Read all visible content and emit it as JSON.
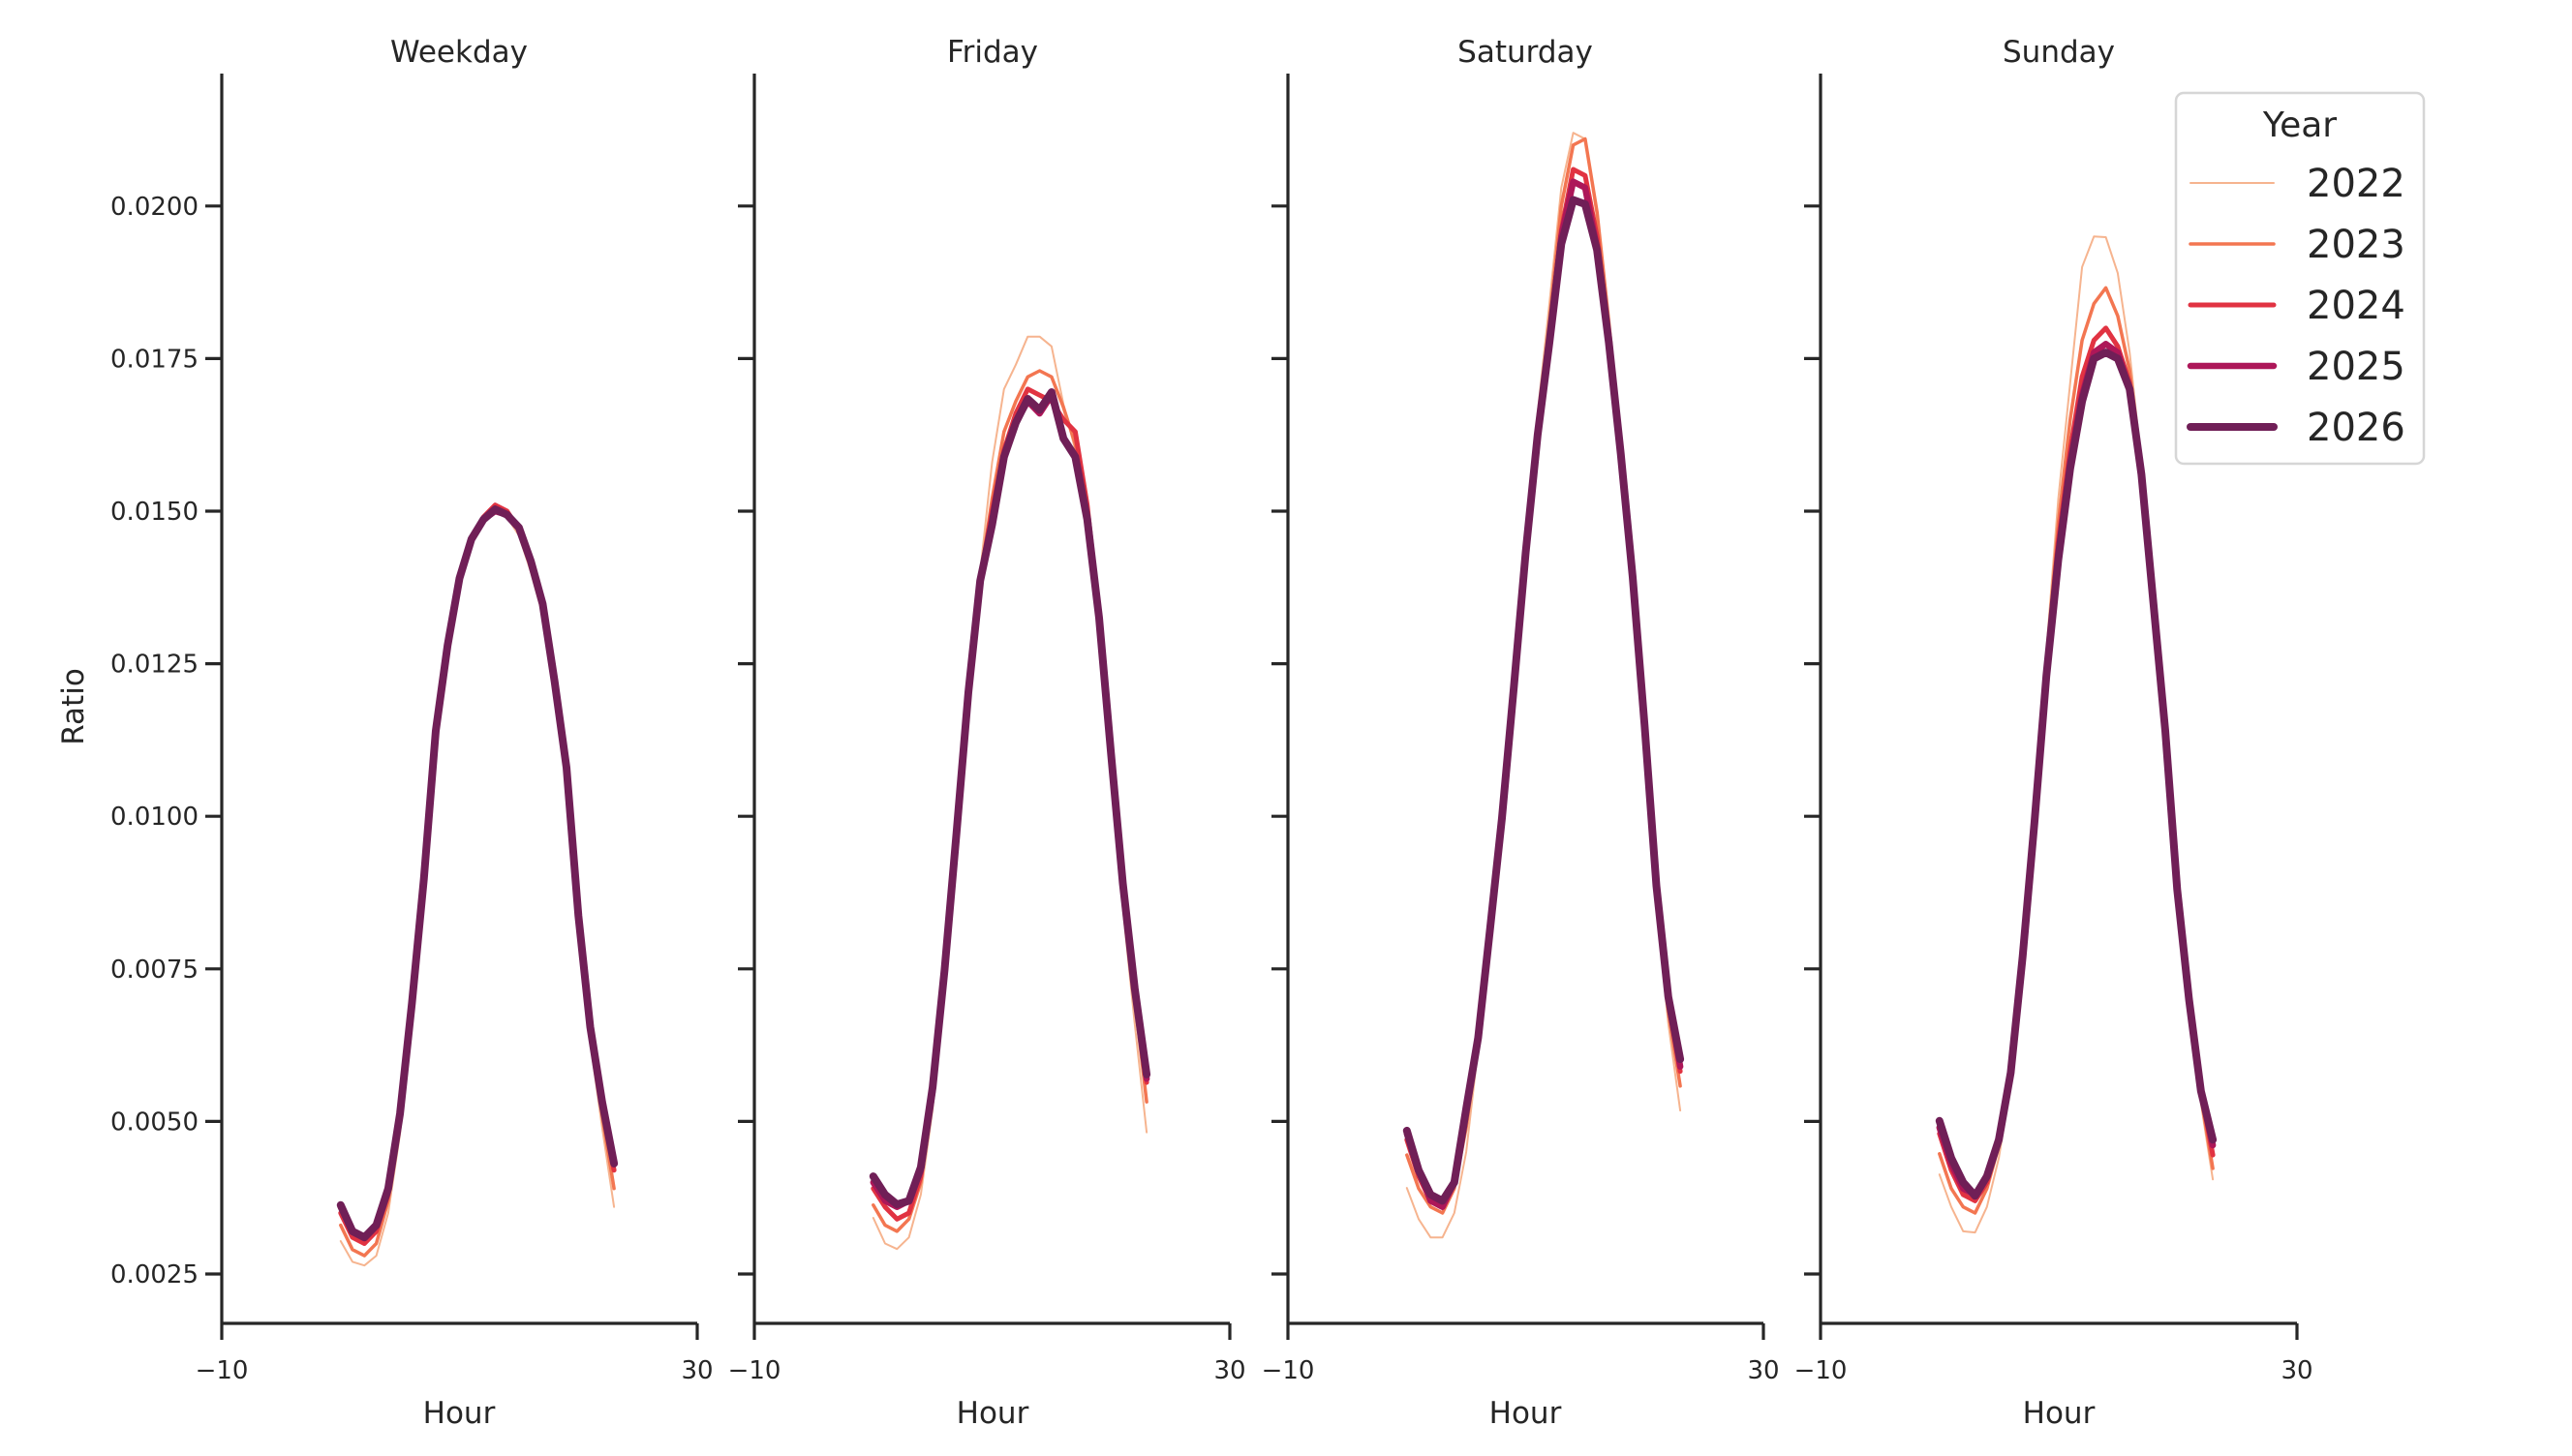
{
  "figure": {
    "ylabel": "Ratio",
    "xlabel": "Hour",
    "legend": {
      "title": "Year",
      "entries": [
        {
          "label": "2022",
          "color": "#f6b48f",
          "width": 2
        },
        {
          "label": "2023",
          "color": "#f37651",
          "width": 3.5
        },
        {
          "label": "2024",
          "color": "#e13342",
          "width": 5
        },
        {
          "label": "2025",
          "color": "#ad1759",
          "width": 6.5
        },
        {
          "label": "2026",
          "color": "#701f57",
          "width": 8
        }
      ]
    },
    "panels": [
      {
        "title": "Weekday"
      },
      {
        "title": "Friday"
      },
      {
        "title": "Saturday"
      },
      {
        "title": "Sunday"
      }
    ],
    "x_ticks": [
      "−10",
      "30"
    ],
    "y_ticks": [
      "0.0025",
      "0.0050",
      "0.0075",
      "0.0100",
      "0.0125",
      "0.0150",
      "0.0175",
      "0.0200"
    ]
  },
  "chart_data": {
    "type": "line",
    "title": "",
    "xlabel": "Hour",
    "ylabel": "Ratio",
    "xlim": [
      -10,
      30
    ],
    "ylim": [
      0.00165,
      0.0222
    ],
    "x_ticks": [
      -10,
      30
    ],
    "y_ticks": [
      0.0025,
      0.005,
      0.0075,
      0.01,
      0.0125,
      0.015,
      0.0175,
      0.02
    ],
    "grid": false,
    "legend_title": "Year",
    "legend_position": "upper right (inside Sunday panel)",
    "x": [
      0,
      1,
      2,
      3,
      4,
      5,
      6,
      7,
      8,
      9,
      10,
      11,
      12,
      13,
      14,
      15,
      16,
      17,
      18,
      19,
      20,
      21,
      22,
      23
    ],
    "facets": [
      {
        "title": "Weekday",
        "series": [
          {
            "name": "2022",
            "values": [
              0.00304,
              0.0027,
              0.00264,
              0.0028,
              0.0035,
              0.0048,
              0.0068,
              0.0089,
              0.0113,
              0.0128,
              0.0139,
              0.0146,
              0.0149,
              0.0151,
              0.0149,
              0.0146,
              0.014,
              0.0133,
              0.012,
              0.0106,
              0.0082,
              0.0063,
              0.0049,
              0.0036
            ]
          },
          {
            "name": "2023",
            "values": [
              0.0033,
              0.0029,
              0.0028,
              0.003,
              0.0037,
              0.005,
              0.0069,
              0.0089,
              0.0114,
              0.0128,
              0.0139,
              0.0146,
              0.0149,
              0.0151,
              0.015,
              0.0147,
              0.0141,
              0.0134,
              0.0121,
              0.0107,
              0.0083,
              0.0064,
              0.0051,
              0.0039
            ]
          },
          {
            "name": "2024",
            "values": [
              0.0035,
              0.0031,
              0.003,
              0.0032,
              0.0038,
              0.0051,
              0.0069,
              0.009,
              0.0114,
              0.0128,
              0.0139,
              0.01455,
              0.0149,
              0.0151,
              0.015,
              0.0147,
              0.0142,
              0.0135,
              0.0122,
              0.0108,
              0.0084,
              0.0065,
              0.0053,
              0.0042
            ]
          },
          {
            "name": "2025",
            "values": [
              0.0036,
              0.0032,
              0.0031,
              0.0033,
              0.0039,
              0.0051,
              0.0069,
              0.009,
              0.0114,
              0.0128,
              0.0139,
              0.01454,
              0.01486,
              0.015,
              0.01494,
              0.01473,
              0.01418,
              0.01348,
              0.01221,
              0.0108,
              0.00837,
              0.00655,
              0.0053,
              0.0043
            ]
          },
          {
            "name": "2026",
            "values": [
              0.00363,
              0.0032,
              0.0031,
              0.0033,
              0.0039,
              0.00513,
              0.00694,
              0.00897,
              0.0114,
              0.0128,
              0.0139,
              0.01454,
              0.01486,
              0.01503,
              0.01494,
              0.01473,
              0.01418,
              0.01348,
              0.01221,
              0.0108,
              0.00837,
              0.00655,
              0.00532,
              0.00431
            ]
          }
        ]
      },
      {
        "title": "Friday",
        "series": [
          {
            "name": "2022",
            "values": [
              0.00342,
              0.003,
              0.00291,
              0.0031,
              0.0038,
              0.0052,
              0.0073,
              0.0097,
              0.0121,
              0.014,
              0.0158,
              0.017,
              0.0174,
              0.01786,
              0.01786,
              0.0177,
              0.01675,
              0.016,
              0.0149,
              0.0131,
              0.0108,
              0.0085,
              0.0066,
              0.00482
            ]
          },
          {
            "name": "2023",
            "values": [
              0.00363,
              0.0033,
              0.0032,
              0.0034,
              0.004,
              0.0054,
              0.0074,
              0.0097,
              0.012,
              0.0139,
              0.0152,
              0.0163,
              0.0168,
              0.0172,
              0.0173,
              0.0172,
              0.0167,
              0.0161,
              0.015,
              0.0133,
              0.011,
              0.0088,
              0.007,
              0.00532
            ]
          },
          {
            "name": "2024",
            "values": [
              0.0039,
              0.0036,
              0.0034,
              0.0035,
              0.0041,
              0.0055,
              0.0075,
              0.0097,
              0.012,
              0.0139,
              0.015,
              0.016,
              0.0166,
              0.017,
              0.0169,
              0.0168,
              0.0165,
              0.0163,
              0.0151,
              0.0133,
              0.0111,
              0.0089,
              0.0072,
              0.00564
            ]
          },
          {
            "name": "2025",
            "values": [
              0.004,
              0.0037,
              0.0036,
              0.0037,
              0.0042,
              0.0055,
              0.0075,
              0.0097,
              0.012,
              0.01386,
              0.01478,
              0.01589,
              0.01645,
              0.0168,
              0.0166,
              0.0169,
              0.0162,
              0.0159,
              0.0149,
              0.0133,
              0.011,
              0.0089,
              0.0072,
              0.0057
            ]
          },
          {
            "name": "2026",
            "values": [
              0.0041,
              0.0038,
              0.00364,
              0.0037,
              0.00425,
              0.00556,
              0.00748,
              0.00972,
              0.01203,
              0.01386,
              0.01478,
              0.01589,
              0.01645,
              0.01684,
              0.01666,
              0.01695,
              0.01619,
              0.01589,
              0.01487,
              0.01325,
              0.01103,
              0.0089,
              0.00718,
              0.00577
            ]
          }
        ]
      },
      {
        "title": "Saturday",
        "series": [
          {
            "name": "2022",
            "values": [
              0.00391,
              0.0034,
              0.0031,
              0.0031,
              0.0035,
              0.0045,
              0.0062,
              0.0081,
              0.01,
              0.0122,
              0.0145,
              0.0166,
              0.0184,
              0.0203,
              0.0212,
              0.0211,
              0.0198,
              0.018,
              0.016,
              0.0138,
              0.0112,
              0.0085,
              0.0066,
              0.00518
            ]
          },
          {
            "name": "2023",
            "values": [
              0.00445,
              0.0039,
              0.0036,
              0.0035,
              0.0039,
              0.0049,
              0.0063,
              0.0081,
              0.01,
              0.0121,
              0.0144,
              0.0164,
              0.0181,
              0.02,
              0.021,
              0.0211,
              0.0199,
              0.0181,
              0.0161,
              0.0139,
              0.0113,
              0.0087,
              0.0068,
              0.00558
            ]
          },
          {
            "name": "2024",
            "values": [
              0.0047,
              0.0041,
              0.0037,
              0.0036,
              0.004,
              0.0051,
              0.0064,
              0.0081,
              0.01,
              0.0121,
              0.0143,
              0.0163,
              0.0179,
              0.0196,
              0.0206,
              0.0205,
              0.0195,
              0.0179,
              0.016,
              0.0139,
              0.0115,
              0.0088,
              0.007,
              0.00582
            ]
          },
          {
            "name": "2025",
            "values": [
              0.0048,
              0.0042,
              0.0037,
              0.0036,
              0.004,
              0.0052,
              0.0064,
              0.0081,
              0.01,
              0.0121,
              0.0143,
              0.0162,
              0.0178,
              0.0195,
              0.0204,
              0.0203,
              0.0193,
              0.0178,
              0.016,
              0.0139,
              0.0115,
              0.0089,
              0.007,
              0.0059
            ]
          },
          {
            "name": "2026",
            "values": [
              0.00485,
              0.0042,
              0.0038,
              0.0037,
              0.004,
              0.00521,
              0.00637,
              0.00815,
              0.00997,
              0.0121,
              0.01432,
              0.01624,
              0.01776,
              0.01938,
              0.0201,
              0.02003,
              0.01928,
              0.01776,
              0.01594,
              0.01392,
              0.01149,
              0.00886,
              0.00704,
              0.00602
            ]
          }
        ]
      },
      {
        "title": "Sunday",
        "series": [
          {
            "name": "2022",
            "values": [
              0.00413,
              0.0036,
              0.0032,
              0.00318,
              0.0036,
              0.0044,
              0.0056,
              0.0077,
              0.0101,
              0.0127,
              0.0152,
              0.0171,
              0.019,
              0.0195,
              0.01949,
              0.0189,
              0.0176,
              0.0158,
              0.0135,
              0.0113,
              0.0086,
              0.0068,
              0.0053,
              0.00405
            ]
          },
          {
            "name": "2023",
            "values": [
              0.00447,
              0.0039,
              0.0036,
              0.0035,
              0.0039,
              0.0046,
              0.0057,
              0.0077,
              0.01,
              0.0125,
              0.0148,
              0.0165,
              0.0178,
              0.0184,
              0.01866,
              0.0182,
              0.0173,
              0.0157,
              0.0135,
              0.0113,
              0.0087,
              0.0069,
              0.0054,
              0.00423
            ]
          },
          {
            "name": "2024",
            "values": [
              0.0048,
              0.0042,
              0.0038,
              0.0037,
              0.004,
              0.0047,
              0.0058,
              0.0077,
              0.0099,
              0.0124,
              0.0145,
              0.016,
              0.0172,
              0.0178,
              0.018,
              0.0177,
              0.0171,
              0.0156,
              0.0135,
              0.0114,
              0.0088,
              0.007,
              0.0055,
              0.00445
            ]
          },
          {
            "name": "2025",
            "values": [
              0.0049,
              0.0043,
              0.0039,
              0.0038,
              0.0041,
              0.0047,
              0.0058,
              0.0077,
              0.0099,
              0.0123,
              0.0143,
              0.0158,
              0.0169,
              0.0176,
              0.01774,
              0.0176,
              0.017,
              0.0156,
              0.0135,
              0.0114,
              0.0088,
              0.007,
              0.0055,
              0.00461
            ]
          },
          {
            "name": "2026",
            "values": [
              0.00501,
              0.0044,
              0.004,
              0.00378,
              0.0041,
              0.0047,
              0.0058,
              0.0077,
              0.0099,
              0.0123,
              0.0142,
              0.0157,
              0.0168,
              0.0175,
              0.0176,
              0.0175,
              0.017,
              0.0156,
              0.0135,
              0.0114,
              0.0088,
              0.007,
              0.0055,
              0.0047
            ]
          }
        ]
      }
    ]
  }
}
